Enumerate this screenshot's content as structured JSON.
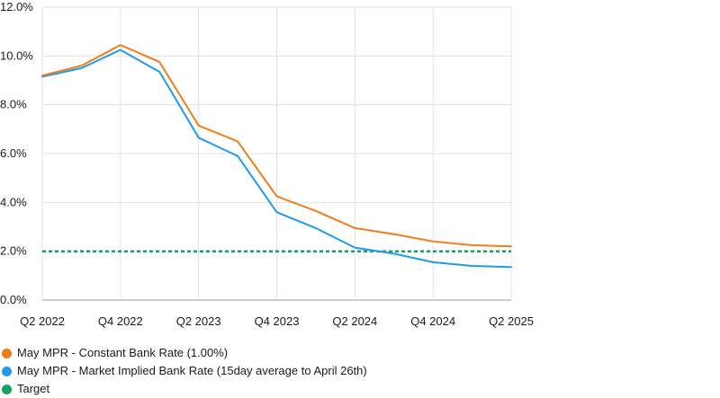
{
  "colors": {
    "constant": "#EE7D1A",
    "market": "#1E9BEB",
    "target": "#17A06A",
    "grid": "#e3e3e3",
    "axis": "#9a9a9a"
  },
  "chart_data": {
    "type": "line",
    "x": [
      "Q2 2022",
      "Q3 2022",
      "Q4 2022",
      "Q1 2023",
      "Q2 2023",
      "Q3 2023",
      "Q4 2023",
      "Q1 2024",
      "Q2 2024",
      "Q3 2024",
      "Q4 2024",
      "Q1 2025",
      "Q2 2025"
    ],
    "x_tick_labels": [
      "Q2 2022",
      "Q4 2022",
      "Q2 2023",
      "Q4 2023",
      "Q2 2024",
      "Q4 2024",
      "Q2 2025"
    ],
    "y_tick_labels": [
      "12.0%",
      "10.0%",
      "8.0%",
      "6.0%",
      "4.0%",
      "2.0%",
      "0.0%"
    ],
    "y_ticks": [
      12,
      10,
      8,
      6,
      4,
      2,
      0
    ],
    "ylim": [
      0,
      12
    ],
    "grid": true,
    "legend_position": "bottom-left",
    "series": [
      {
        "name": "May MPR - Constant Bank Rate (1.00%)",
        "color_key": "constant",
        "style": "solid",
        "values": [
          9.2,
          9.6,
          10.45,
          9.75,
          7.15,
          6.5,
          4.25,
          3.65,
          2.95,
          2.7,
          2.4,
          2.25,
          2.2
        ]
      },
      {
        "name": "May MPR - Market Implied Bank Rate (15day average to April 26th)",
        "color_key": "market",
        "style": "solid",
        "values": [
          9.15,
          9.5,
          10.25,
          9.35,
          6.65,
          5.9,
          3.6,
          2.95,
          2.15,
          1.9,
          1.55,
          1.4,
          1.35
        ]
      },
      {
        "name": "Target",
        "color_key": "target",
        "style": "dotted",
        "values": [
          2,
          2,
          2,
          2,
          2,
          2,
          2,
          2,
          2,
          2,
          2,
          2,
          2
        ]
      }
    ]
  }
}
